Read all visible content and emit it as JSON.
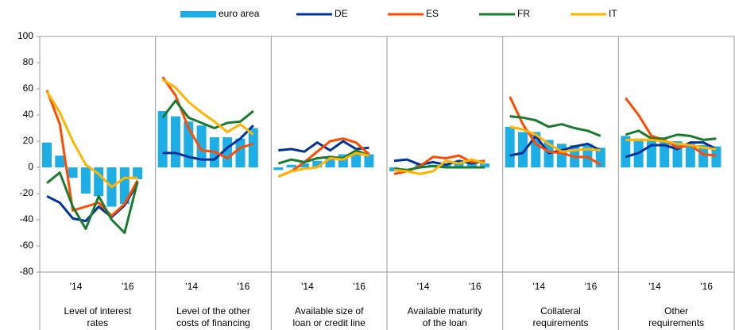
{
  "chart_data": {
    "type": "panel-bar-line",
    "series": [
      {
        "name": "euro area",
        "color": "#1eaee6",
        "type": "bar"
      },
      {
        "name": "DE",
        "color": "#003299",
        "type": "line"
      },
      {
        "name": "ES",
        "color": "#ff4b00",
        "type": "line"
      },
      {
        "name": "FR",
        "color": "#1a7a30",
        "type": "line"
      },
      {
        "name": "IT",
        "color": "#ffb400",
        "type": "line"
      }
    ],
    "categories": [
      null,
      null,
      "'14",
      null,
      null,
      null,
      "'16",
      null
    ],
    "ylim": [
      -80,
      100
    ],
    "yticks": [
      -80,
      -60,
      -40,
      -20,
      0,
      20,
      40,
      60,
      80,
      100
    ],
    "grid": false,
    "panels": [
      {
        "title": [
          "Level of interest",
          "rates"
        ],
        "values": [
          [
            19,
            9,
            -8,
            -20,
            -22,
            -30,
            -28,
            -9
          ],
          [
            -22,
            -27,
            -39,
            -41,
            -30,
            -38,
            -29,
            -12
          ],
          [
            59,
            33,
            -33,
            -30,
            -27,
            -37,
            -28,
            -10
          ],
          [
            -12,
            -4,
            -30,
            -47,
            -22,
            -40,
            -50,
            -11
          ],
          [
            58,
            42,
            20,
            2,
            -5,
            -15,
            -8,
            -8
          ]
        ]
      },
      {
        "title": [
          "Level of the other",
          "costs of financing"
        ],
        "values": [
          [
            43,
            39,
            35,
            32,
            23,
            23,
            22,
            30
          ],
          [
            11,
            11,
            8,
            6,
            6,
            15,
            22,
            32
          ],
          [
            69,
            55,
            30,
            13,
            12,
            7,
            15,
            18
          ],
          [
            38,
            51,
            38,
            34,
            30,
            34,
            35,
            43
          ],
          [
            67,
            61,
            50,
            42,
            35,
            27,
            33,
            25
          ]
        ]
      },
      {
        "title": [
          "Available size of",
          "loan or credit line"
        ],
        "values": [
          [
            -2,
            2,
            3,
            5,
            7,
            10,
            11,
            10
          ],
          [
            13,
            14,
            12,
            19,
            13,
            20,
            14,
            15
          ],
          [
            -7,
            -3,
            4,
            12,
            20,
            22,
            19,
            10
          ],
          [
            3,
            6,
            4,
            7,
            8,
            7,
            13,
            9
          ],
          [
            -7,
            -3,
            -1,
            0,
            7,
            6,
            11,
            9
          ]
        ]
      },
      {
        "title": [
          "Available maturity",
          "of the loan"
        ],
        "values": [
          [
            -3,
            0,
            2,
            2,
            3,
            4,
            3,
            3
          ],
          [
            5,
            6,
            2,
            4,
            2,
            5,
            3,
            5
          ],
          [
            -5,
            -3,
            1,
            8,
            7,
            9,
            4,
            5
          ],
          [
            -1,
            -2,
            0,
            1,
            0,
            0,
            0,
            0
          ],
          [
            -2,
            -3,
            -5,
            -3,
            5,
            3,
            6,
            3
          ]
        ]
      },
      {
        "title": [
          "Collateral",
          "requirements"
        ],
        "values": [
          [
            31,
            27,
            27,
            21,
            18,
            17,
            18,
            15
          ],
          [
            9,
            11,
            24,
            11,
            13,
            16,
            18,
            13
          ],
          [
            54,
            33,
            18,
            12,
            11,
            8,
            8,
            2
          ],
          [
            39,
            38,
            36,
            31,
            33,
            30,
            28,
            24
          ],
          [
            31,
            29,
            25,
            18,
            12,
            13,
            14,
            13
          ]
        ]
      },
      {
        "title": [
          "Other",
          "requirements"
        ],
        "values": [
          [
            24,
            22,
            21,
            20,
            20,
            18,
            17,
            16
          ],
          [
            8,
            11,
            17,
            17,
            14,
            19,
            19,
            14
          ],
          [
            53,
            40,
            24,
            21,
            15,
            17,
            10,
            9
          ],
          [
            25,
            28,
            22,
            22,
            25,
            24,
            21,
            22
          ],
          [
            21,
            21,
            21,
            20,
            18,
            17,
            15,
            14
          ]
        ]
      }
    ]
  }
}
